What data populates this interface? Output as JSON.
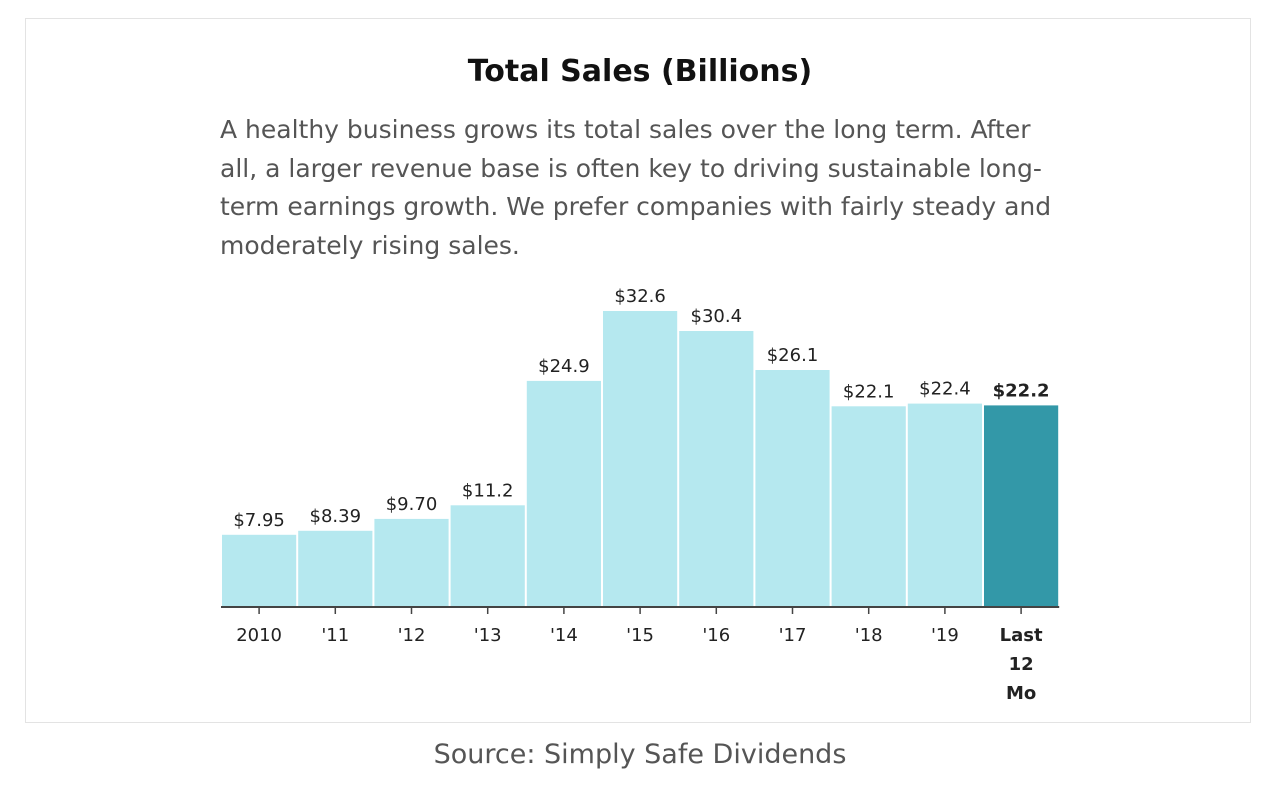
{
  "header": {
    "title": "Total Sales (Billions)",
    "description": "A healthy business grows its total sales over the long term. After all, a larger revenue base is often key to driving sustainable long-term earnings growth. We prefer companies with fairly steady and moderately rising sales."
  },
  "footer": {
    "source": "Source: Simply Safe Dividends"
  },
  "colors": {
    "bar": "#b5e8ef",
    "highlight_bar": "#3398a8",
    "axis": "#444444",
    "text": "#222222"
  },
  "chart_data": {
    "type": "bar",
    "title": "Total Sales (Billions)",
    "xlabel": "",
    "ylabel": "",
    "ylim": [
      0,
      32.6
    ],
    "grid": false,
    "legend": "none",
    "categories": [
      "2010",
      "'11",
      "'12",
      "'13",
      "'14",
      "'15",
      "'16",
      "'17",
      "'18",
      "'19",
      "Last 12 Mo"
    ],
    "values": [
      7.95,
      8.39,
      9.7,
      11.2,
      24.9,
      32.6,
      30.4,
      26.1,
      22.1,
      22.4,
      22.2
    ],
    "value_labels": [
      "$7.95",
      "$8.39",
      "$9.70",
      "$11.2",
      "$24.9",
      "$32.6",
      "$30.4",
      "$26.1",
      "$22.1",
      "$22.4",
      "$22.2"
    ],
    "highlight_index": 10
  }
}
